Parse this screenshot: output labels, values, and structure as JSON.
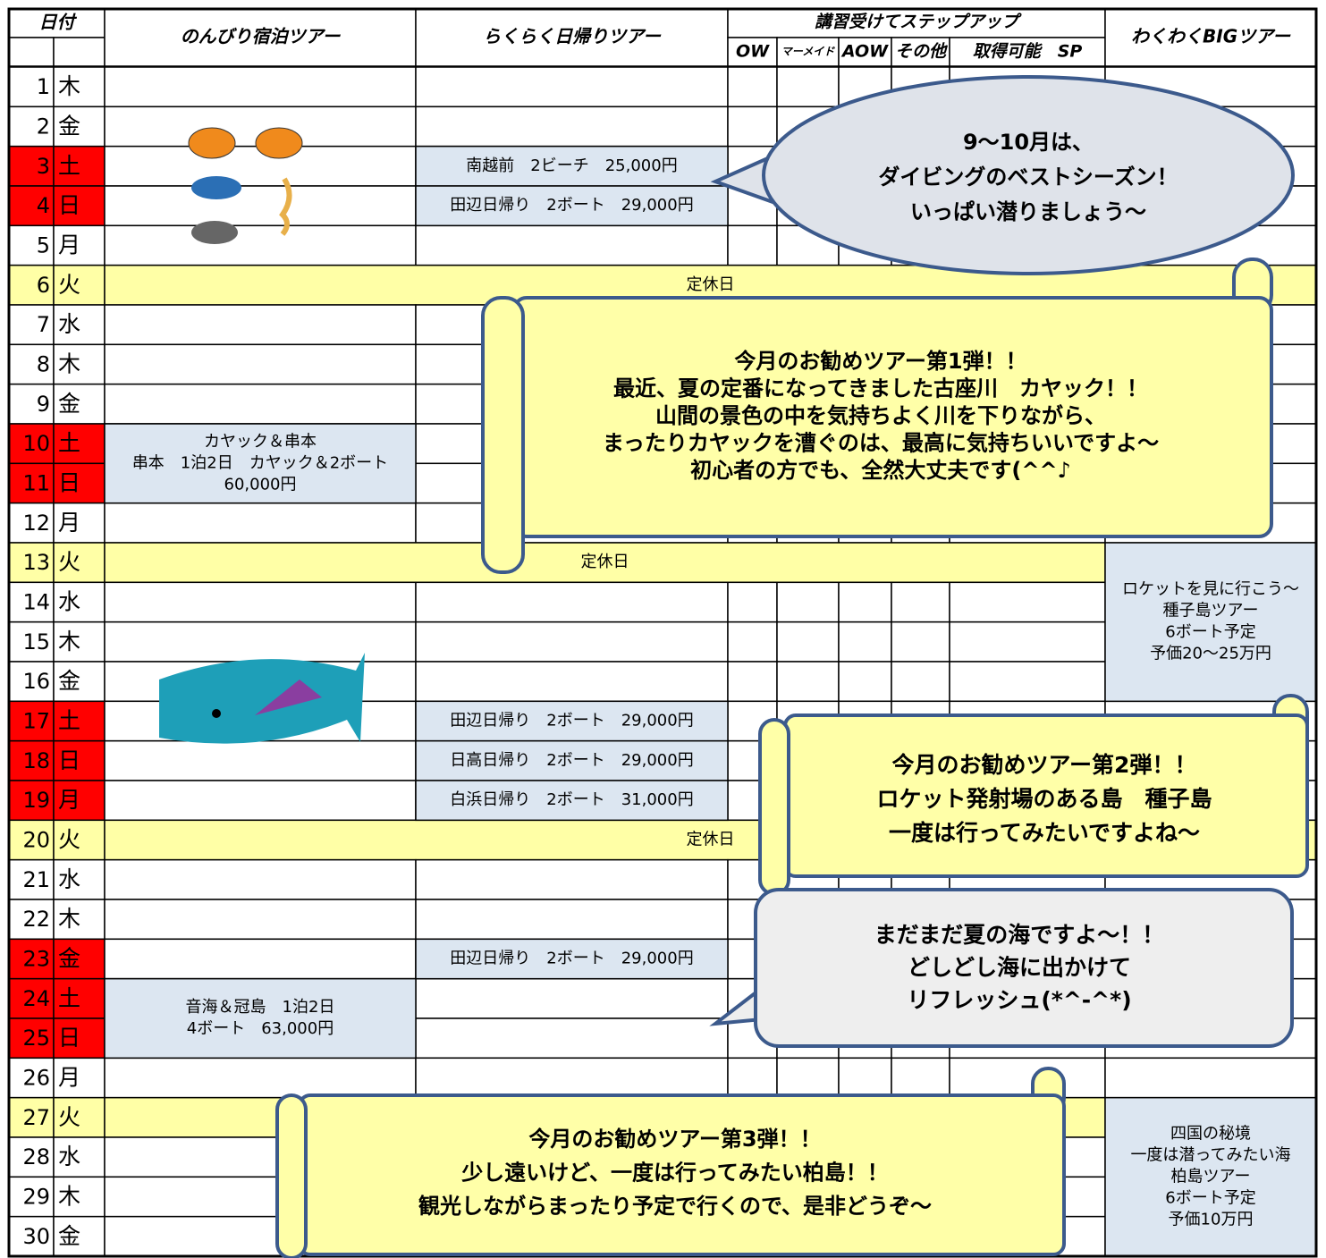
{
  "header": {
    "date": "日付",
    "nonbiri": "のんびり宿泊ツアー",
    "rakuraku": "らくらく日帰りツアー",
    "steps": "講習受けてステップアップ",
    "step_columns": [
      "OW",
      "マーメイド",
      "AOW",
      "その他",
      "取得可能　SP"
    ],
    "big": "わくわくBIGツアー"
  },
  "days": [
    {
      "day": 1,
      "weekday": "木"
    },
    {
      "day": 2,
      "weekday": "金"
    },
    {
      "day": 3,
      "weekday": "土",
      "holiday": true
    },
    {
      "day": 4,
      "weekday": "日",
      "holiday": true
    },
    {
      "day": 5,
      "weekday": "月"
    },
    {
      "day": 6,
      "weekday": "火",
      "rest_day": true,
      "closed": "定休日"
    },
    {
      "day": 7,
      "weekday": "水"
    },
    {
      "day": 8,
      "weekday": "木"
    },
    {
      "day": 9,
      "weekday": "金"
    },
    {
      "day": 10,
      "weekday": "土",
      "holiday": true
    },
    {
      "day": 11,
      "weekday": "日",
      "holiday": true
    },
    {
      "day": 12,
      "weekday": "月"
    },
    {
      "day": 13,
      "weekday": "火",
      "rest_day": true,
      "closed": "定休日"
    },
    {
      "day": 14,
      "weekday": "水"
    },
    {
      "day": 15,
      "weekday": "木"
    },
    {
      "day": 16,
      "weekday": "金"
    },
    {
      "day": 17,
      "weekday": "土",
      "holiday": true
    },
    {
      "day": 18,
      "weekday": "日",
      "holiday": true
    },
    {
      "day": 19,
      "weekday": "月",
      "holiday": true
    },
    {
      "day": 20,
      "weekday": "火",
      "rest_day": true,
      "closed": "定休日"
    },
    {
      "day": 21,
      "weekday": "水"
    },
    {
      "day": 22,
      "weekday": "木"
    },
    {
      "day": 23,
      "weekday": "金",
      "holiday": true
    },
    {
      "day": 24,
      "weekday": "土",
      "holiday": true
    },
    {
      "day": 25,
      "weekday": "日",
      "holiday": true
    },
    {
      "day": 26,
      "weekday": "月"
    },
    {
      "day": 27,
      "weekday": "火",
      "rest_day": true
    },
    {
      "day": 28,
      "weekday": "水"
    },
    {
      "day": 29,
      "weekday": "木"
    },
    {
      "day": 30,
      "weekday": "金"
    }
  ],
  "tours": {
    "nonbiri": [
      {
        "days": [
          10,
          11
        ],
        "lines": [
          "カヤック＆串本",
          "串本　1泊2日　カヤック＆2ボート",
          "60,000円"
        ]
      },
      {
        "days": [
          24,
          25
        ],
        "lines": [
          "音海＆冠島　1泊2日",
          "4ボート　63,000円"
        ]
      }
    ],
    "rakuraku": [
      {
        "day": 3,
        "text": "南越前　2ビーチ　25,000円"
      },
      {
        "day": 4,
        "text": "田辺日帰り　2ボート　29,000円"
      },
      {
        "day": 17,
        "text": "田辺日帰り　2ボート　29,000円"
      },
      {
        "day": 18,
        "text": "日高日帰り　2ボート　29,000円"
      },
      {
        "day": 19,
        "text": "白浜日帰り　2ボート　31,000円"
      },
      {
        "day": 23,
        "text": "田辺日帰り　2ボート　29,000円"
      }
    ],
    "big": [
      {
        "days": [
          13,
          16
        ],
        "lines": [
          "ロケットを見に行こう～",
          "種子島ツアー",
          "6ボート予定",
          "予価20～25万円"
        ]
      },
      {
        "days": [
          27,
          30
        ],
        "lines": [
          "四国の秘境",
          "一度は潜ってみたい海",
          "柏島ツアー",
          "6ボート予定",
          "予価10万円"
        ]
      }
    ]
  },
  "callouts": [
    {
      "lines": [
        "9～10月は、",
        "ダイビングのベストシーズン！",
        "いっぱい潜りましょう～"
      ]
    },
    {
      "lines": [
        "今月のお勧めツアー第1弾！！",
        "最近、夏の定番になってきました古座川　カヤック！！",
        "山間の景色の中を気持ちよく川を下りながら、",
        "まったりカヤックを漕ぐのは、最高に気持ちいいですよ～",
        "初心者の方でも、全然大丈夫です(^^♪"
      ]
    },
    {
      "lines": [
        "今月のお勧めツアー第2弾！！",
        "ロケット発射場のある島　種子島",
        "一度は行ってみたいですよね～"
      ]
    },
    {
      "lines": [
        "まだまだ夏の海ですよ～！！",
        "どしどし海に出かけて",
        "リフレッシュ(*^-^*)"
      ]
    },
    {
      "lines": [
        "今月のお勧めツアー第3弾！！",
        "少し遠いけど、一度は行ってみたい柏島！！",
        "観光しながらまったり予定で行くので、是非どうぞ～"
      ]
    }
  ]
}
